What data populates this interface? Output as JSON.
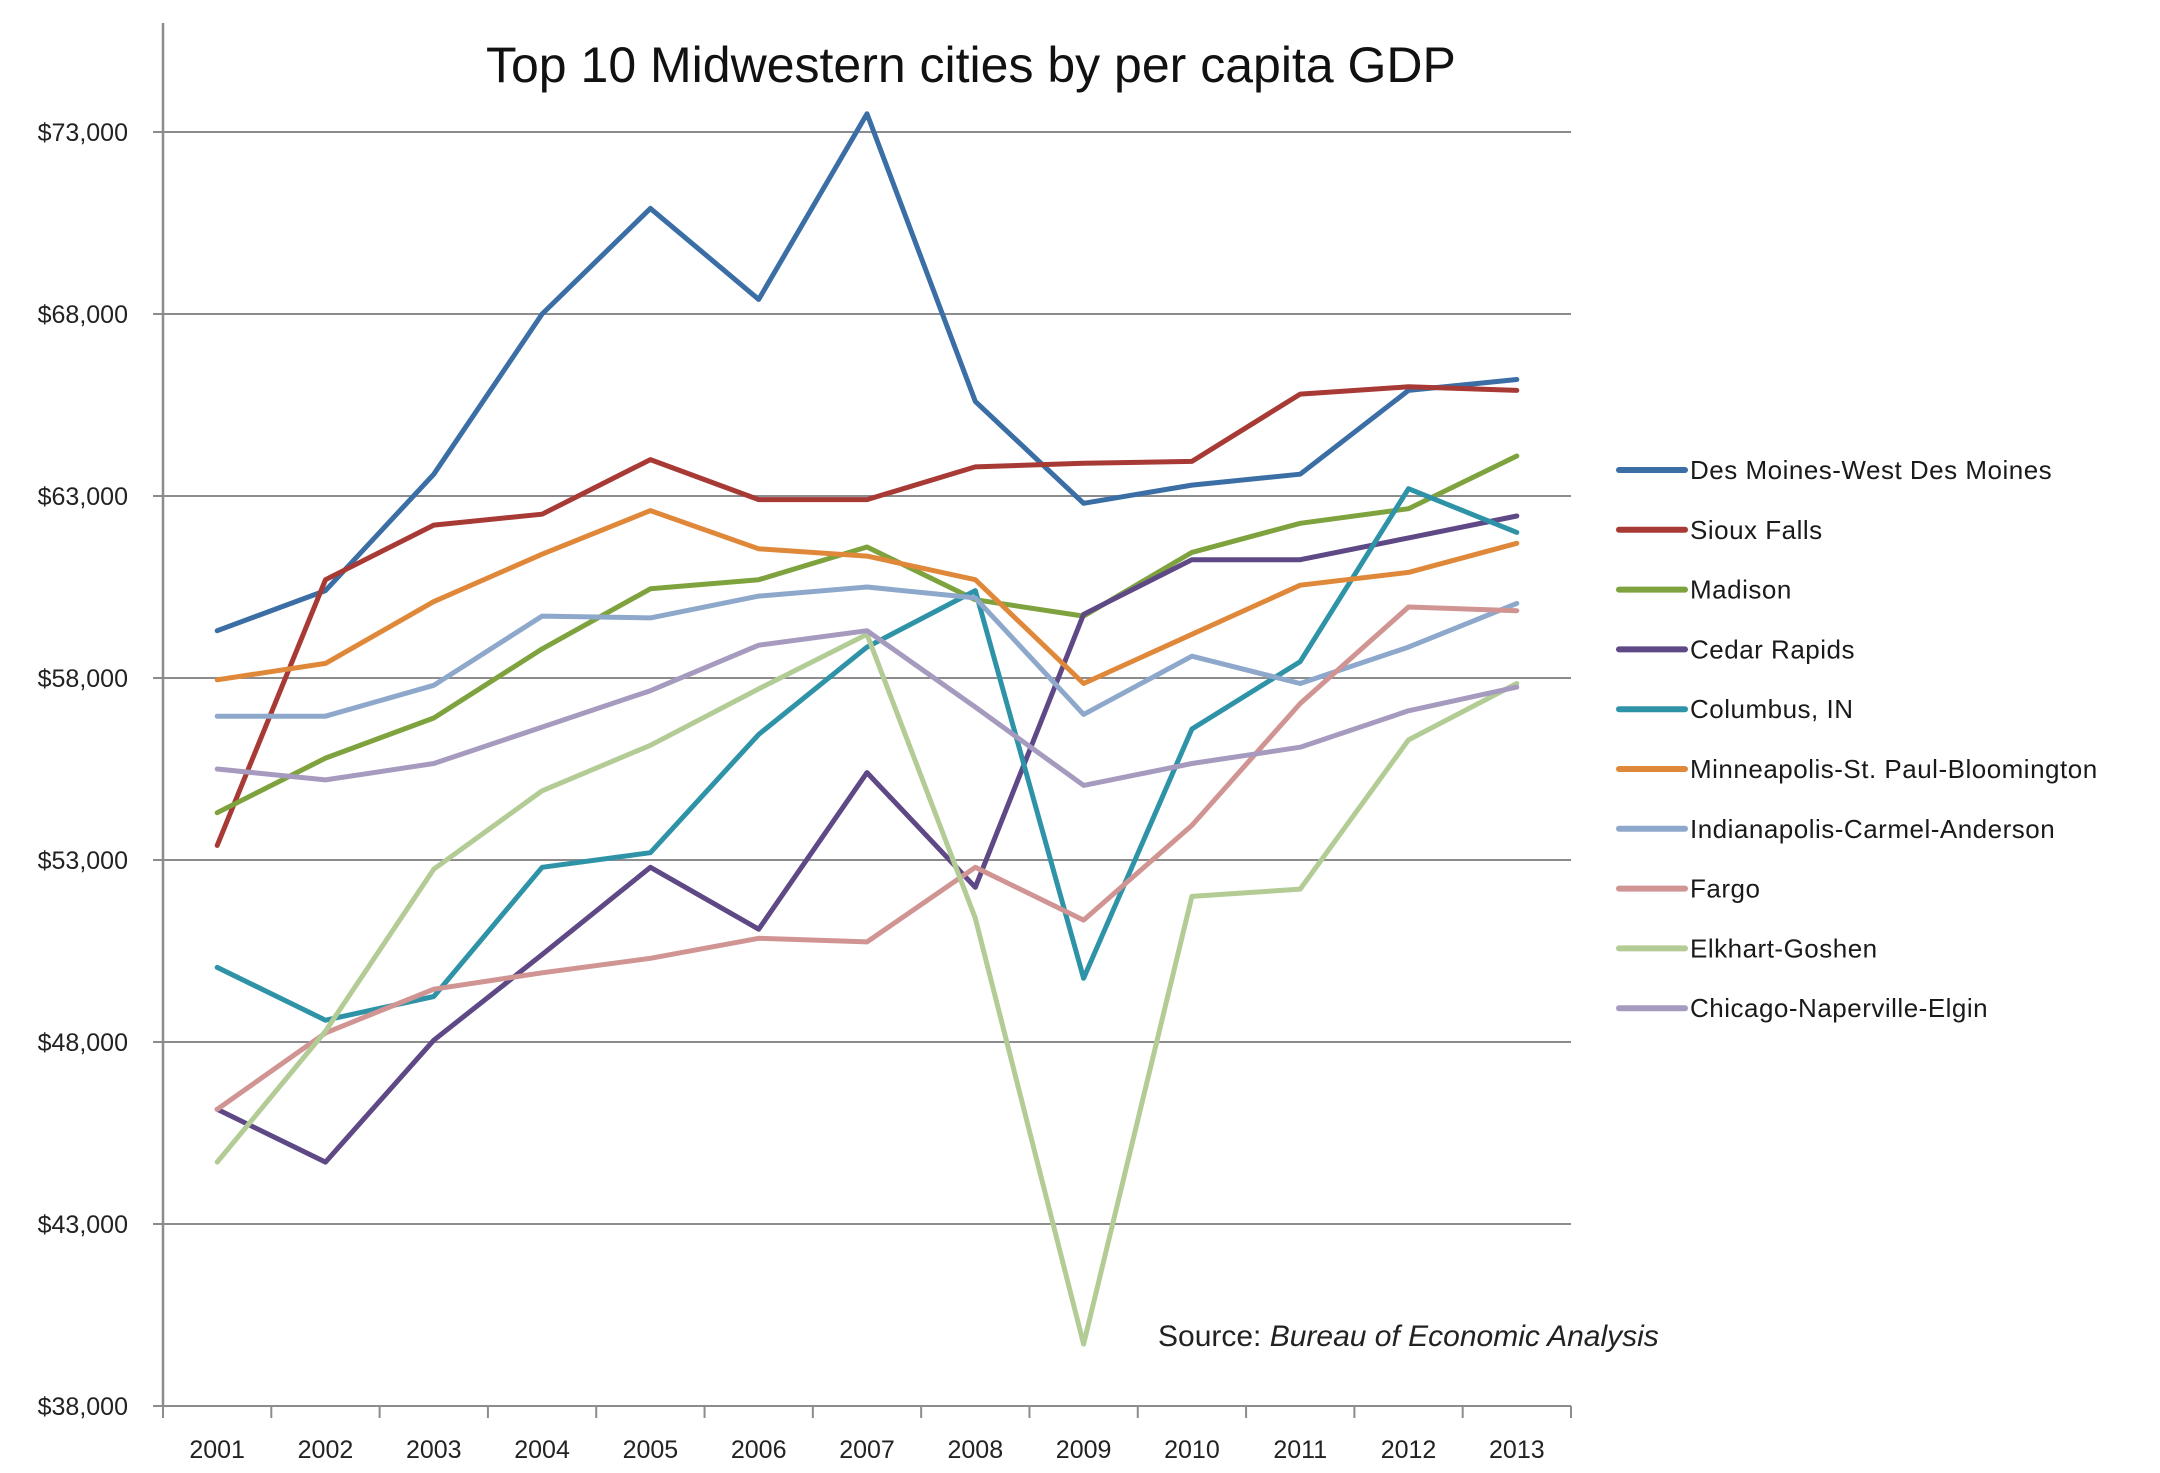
{
  "chart_data": {
    "type": "line",
    "title": "Top 10 Midwestern cities by per capita GDP",
    "xlabel": "",
    "ylabel": "",
    "source_prefix": "Source: ",
    "source_name": "Bureau of Economic Analysis",
    "x": [
      "2001",
      "2002",
      "2003",
      "2004",
      "2005",
      "2006",
      "2007",
      "2008",
      "2009",
      "2010",
      "2011",
      "2012",
      "2013"
    ],
    "ylim": [
      38000,
      75500
    ],
    "yticks": [
      38000,
      43000,
      48000,
      53000,
      58000,
      63000,
      68000,
      73000
    ],
    "ytick_labels": [
      "$38,000",
      "$43,000",
      "$48,000",
      "$53,000",
      "$58,000",
      "$63,000",
      "$68,000",
      "$73,000"
    ],
    "grid": true,
    "legend_position": "right",
    "series": [
      {
        "name": "Des Moines-West Des Moines",
        "color": "#3a6ea5",
        "values": [
          59300,
          60400,
          63600,
          68000,
          70900,
          68400,
          73500,
          65600,
          62800,
          63300,
          63600,
          65900,
          66200
        ]
      },
      {
        "name": "Sioux Falls",
        "color": "#a83a36",
        "values": [
          53400,
          60700,
          62200,
          62500,
          64000,
          62900,
          62900,
          63800,
          63900,
          63950,
          65800,
          66000,
          65900
        ]
      },
      {
        "name": "Madison",
        "color": "#7ea33e",
        "values": [
          54300,
          55800,
          56900,
          58800,
          60450,
          60700,
          61600,
          60150,
          59700,
          61450,
          62250,
          62650,
          64100
        ]
      },
      {
        "name": "Cedar Rapids",
        "color": "#5e4885",
        "values": [
          46150,
          44700,
          48050,
          50400,
          52800,
          51100,
          55400,
          52250,
          59750,
          61250,
          61250,
          61850,
          62450
        ]
      },
      {
        "name": "Columbus, IN",
        "color": "#2f93a8",
        "values": [
          50050,
          48600,
          49250,
          52800,
          53200,
          56450,
          58850,
          60400,
          49750,
          56600,
          58450,
          63200,
          62000
        ]
      },
      {
        "name": "Minneapolis-St. Paul-Bloomington",
        "color": "#e0883a",
        "values": [
          57950,
          58400,
          60100,
          61400,
          62600,
          61550,
          61350,
          60700,
          57850,
          59200,
          60550,
          60900,
          61700
        ]
      },
      {
        "name": "Indianapolis-Carmel-Anderson",
        "color": "#8ea8cc",
        "values": [
          56950,
          56950,
          57800,
          59700,
          59650,
          60250,
          60500,
          60200,
          57000,
          58600,
          57850,
          58850,
          60050
        ]
      },
      {
        "name": "Fargo",
        "color": "#d09593",
        "values": [
          46150,
          48250,
          49450,
          49900,
          50300,
          50850,
          50750,
          52800,
          51350,
          53950,
          57300,
          59950,
          59850
        ]
      },
      {
        "name": "Elkhart-Goshen",
        "color": "#b3cc95",
        "values": [
          44700,
          48300,
          52750,
          54900,
          56150,
          57700,
          59200,
          51400,
          39700,
          52000,
          52200,
          56300,
          57850
        ]
      },
      {
        "name": "Chicago-Naperville-Elgin",
        "color": "#a69bbf",
        "values": [
          55500,
          55200,
          55650,
          56650,
          57650,
          58900,
          59300,
          57200,
          55050,
          55650,
          56100,
          57100,
          57750
        ]
      }
    ]
  }
}
